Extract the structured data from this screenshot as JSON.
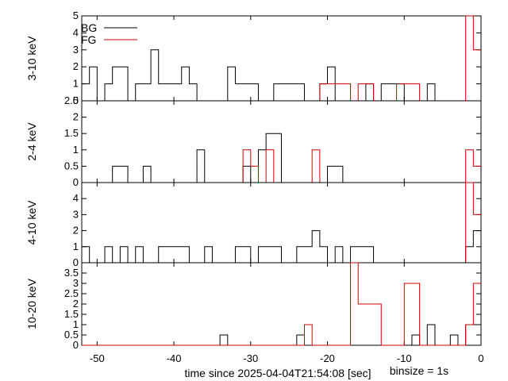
{
  "colors": {
    "bg": "#000000",
    "fg": "#cc0000",
    "frame": "#000000",
    "background": "#ffffff"
  },
  "chart_data": {
    "type": "histogram-step",
    "xlabel": "time since 2025-04-04T21:54:08 [sec]",
    "binsize_label": "binsize = 1s",
    "xlim": [
      -52,
      0
    ],
    "xticks": [
      -50,
      -40,
      -30,
      -20,
      -10,
      0
    ],
    "xtick_labels": [
      "-50",
      "-40",
      "-30",
      "-20",
      "-10",
      "0"
    ],
    "legend": {
      "placement": "top-left",
      "entries": [
        {
          "name": "BG",
          "color": "#000000"
        },
        {
          "name": "FG",
          "color": "#cc0000"
        }
      ]
    },
    "panels": [
      {
        "ylabel": "3-10 keV",
        "ylim": [
          0,
          5
        ],
        "yticks": [
          0,
          1,
          2,
          3,
          4,
          5
        ],
        "ytick_labels": [
          "0",
          "1",
          "2",
          "3",
          "4",
          "5"
        ],
        "series": [
          {
            "name": "BG",
            "values": [
              0,
              0,
              0,
              0,
              0,
              0,
              1,
              0,
              0,
              0,
              1,
              1,
              1,
              0,
              1,
              0,
              0,
              0,
              0,
              2,
              1,
              0,
              0,
              1,
              1,
              1,
              1,
              0,
              0,
              1,
              1,
              1,
              2,
              0,
              0,
              0,
              0,
              1,
              2,
              1,
              1,
              1,
              3,
              1,
              1,
              0,
              2,
              2,
              1,
              0,
              2,
              1
            ]
          },
          {
            "name": "FG",
            "values": [
              3,
              5,
              0,
              0,
              0,
              0,
              0,
              0,
              1,
              1,
              1,
              0,
              0,
              0,
              1,
              1,
              0,
              1,
              1,
              1,
              1,
              0,
              0,
              0,
              0,
              0,
              0,
              0,
              0,
              0,
              0,
              0,
              0,
              0,
              0,
              0,
              0,
              0,
              0,
              0,
              0,
              0,
              0,
              0,
              0,
              0,
              0,
              0,
              0,
              0,
              0,
              0
            ]
          }
        ]
      },
      {
        "ylabel": "2-4 keV",
        "ylim": [
          0,
          2.5
        ],
        "yticks": [
          0,
          0.5,
          1,
          1.5,
          2,
          2.5
        ],
        "ytick_labels": [
          "0",
          "0.5",
          "1",
          "1.5",
          "2",
          "2.5"
        ],
        "series": [
          {
            "name": "BG",
            "values": [
              0,
              0,
              0,
              0,
              0,
              0,
              0,
              0,
              0,
              0,
              0,
              0,
              0,
              0,
              0,
              0,
              0,
              0,
              0.5,
              0.5,
              0,
              0,
              0,
              0,
              0,
              0,
              1.5,
              1.5,
              1,
              0,
              0.5,
              0,
              0,
              0,
              0,
              0,
              1,
              0,
              0,
              0,
              0,
              0,
              0,
              0.5,
              0,
              0,
              0.5,
              0.5,
              0,
              0,
              0,
              0
            ]
          },
          {
            "name": "FG",
            "values": [
              0.5,
              1,
              0,
              0,
              0,
              0,
              0,
              0,
              0,
              0,
              0,
              0,
              0,
              0,
              0,
              0,
              0,
              0,
              0,
              0,
              0,
              1,
              0,
              0,
              0,
              0,
              0,
              1,
              0,
              0.5,
              1,
              0,
              0,
              0,
              0,
              0,
              0,
              0,
              0,
              0,
              0,
              0,
              0,
              0,
              0,
              0,
              0,
              0,
              0,
              0,
              0,
              0
            ]
          }
        ]
      },
      {
        "ylabel": "4-10 keV",
        "ylim": [
          0,
          5
        ],
        "yticks": [
          0,
          1,
          2,
          3,
          4
        ],
        "ytick_labels": [
          "0",
          "1",
          "2",
          "3",
          "4"
        ],
        "series": [
          {
            "name": "BG",
            "values": [
              2,
              1,
              0,
              0,
              0,
              0,
              0,
              0,
              0,
              0,
              0,
              0,
              0,
              0,
              1,
              1,
              1,
              0,
              1,
              0,
              1,
              2,
              1,
              1,
              0,
              0,
              1,
              1,
              1,
              0,
              1,
              1,
              0,
              0,
              0,
              1,
              0,
              0,
              1,
              1,
              1,
              1,
              0,
              0,
              1,
              0,
              1,
              0,
              1,
              0,
              0,
              1
            ]
          },
          {
            "name": "FG",
            "values": [
              3,
              5,
              0,
              0,
              0,
              0,
              0,
              0,
              0,
              0,
              0,
              0,
              0,
              0,
              0,
              0,
              0,
              0,
              0,
              0,
              0,
              0,
              0,
              0,
              0,
              0,
              0,
              0,
              0,
              0,
              0,
              0,
              0,
              0,
              0,
              0,
              0,
              0,
              0,
              0,
              0,
              0,
              0,
              0,
              0,
              0,
              0,
              0,
              0,
              0,
              0,
              0
            ]
          }
        ]
      },
      {
        "ylabel": "10-20 keV",
        "ylim": [
          0,
          4
        ],
        "yticks": [
          0,
          0.5,
          1,
          1.5,
          2,
          2.5,
          3,
          3.5
        ],
        "ytick_labels": [
          "0",
          "0.5",
          "1",
          "1.5",
          "2",
          "2.5",
          "3",
          "3.5"
        ],
        "series": [
          {
            "name": "BG",
            "values": [
              1,
              1,
              0,
              0.5,
              0,
              0,
              1,
              0,
              0.5,
              0,
              0,
              0,
              0,
              0,
              0,
              0,
              0,
              0,
              0,
              0,
              0,
              0,
              0,
              0.5,
              0,
              0,
              0,
              0,
              0,
              0,
              0,
              0,
              0,
              0.5,
              0,
              0,
              0,
              0,
              0,
              0,
              0,
              0,
              0,
              0,
              0,
              0,
              0,
              0,
              0,
              0,
              0,
              0
            ]
          },
          {
            "name": "FG",
            "values": [
              3,
              1,
              0,
              0,
              0,
              0,
              0,
              0,
              3,
              3,
              0,
              0,
              0,
              2,
              2,
              2,
              4,
              0,
              0,
              0,
              0,
              0,
              1,
              0,
              0,
              0,
              0,
              0,
              0,
              0,
              0,
              0,
              0,
              0,
              0,
              0,
              0,
              0,
              0,
              0,
              0,
              0,
              0,
              0,
              0,
              0,
              0,
              0,
              0,
              0,
              0,
              0
            ]
          }
        ]
      }
    ]
  }
}
